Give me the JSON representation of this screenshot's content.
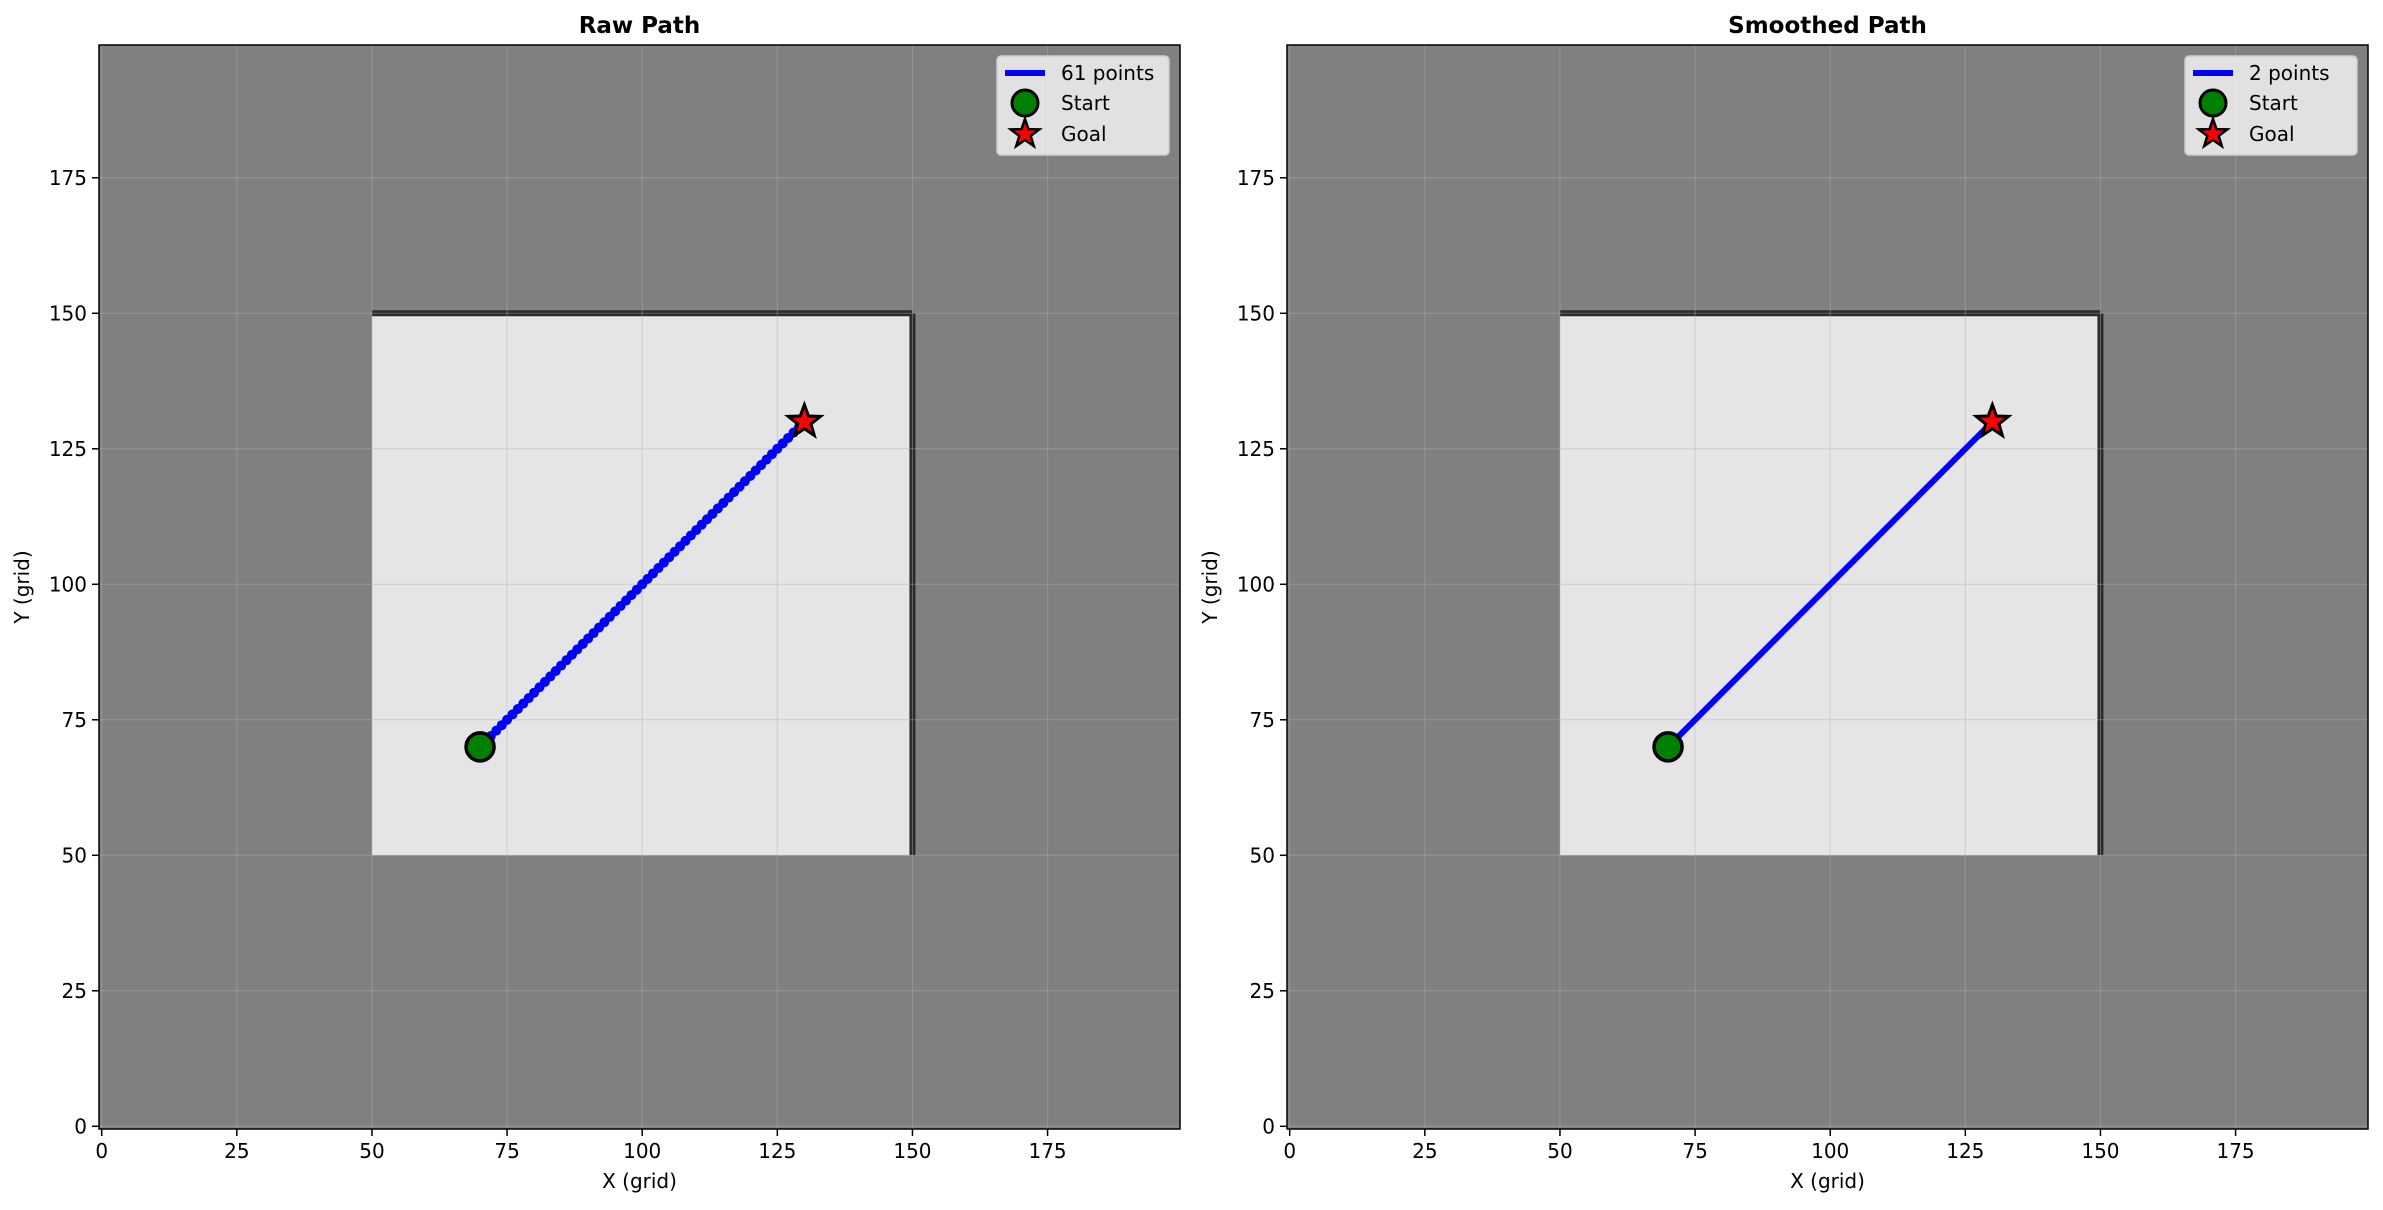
{
  "chart_data": [
    {
      "type": "line",
      "title": "Raw Path",
      "xlabel": "X (grid)",
      "ylabel": "Y (grid)",
      "xlim": [
        -0.5,
        199.5
      ],
      "ylim": [
        -0.5,
        199.5
      ],
      "xticks": [
        0,
        25,
        50,
        75,
        100,
        125,
        150,
        175
      ],
      "yticks": [
        0,
        25,
        50,
        75,
        100,
        125,
        150,
        175
      ],
      "grid": true,
      "legend_position": "top-right",
      "background": {
        "outside_color": "#808080",
        "free_region": {
          "x": [
            50,
            150
          ],
          "y": [
            50,
            150
          ],
          "color": "#e5e5e5"
        },
        "walls": [
          {
            "from": [
              50,
              150
            ],
            "to": [
              150,
              150
            ]
          },
          {
            "from": [
              150,
              150
            ],
            "to": [
              150,
              50
            ]
          }
        ]
      },
      "series": [
        {
          "name": "61 points",
          "color": "#0000ff",
          "marker": "o",
          "start": [
            70,
            70
          ],
          "end": [
            130,
            130
          ],
          "num_points": 61
        }
      ],
      "start": {
        "label": "Start",
        "x": 70,
        "y": 70,
        "color": "#008000"
      },
      "goal": {
        "label": "Goal",
        "x": 130,
        "y": 130,
        "color": "#ff0000"
      }
    },
    {
      "type": "line",
      "title": "Smoothed Path",
      "xlabel": "X (grid)",
      "ylabel": "Y (grid)",
      "xlim": [
        -0.5,
        199.5
      ],
      "ylim": [
        -0.5,
        199.5
      ],
      "xticks": [
        0,
        25,
        50,
        75,
        100,
        125,
        150,
        175
      ],
      "yticks": [
        0,
        25,
        50,
        75,
        100,
        125,
        150,
        175
      ],
      "grid": true,
      "legend_position": "top-right",
      "background": {
        "outside_color": "#808080",
        "free_region": {
          "x": [
            50,
            150
          ],
          "y": [
            50,
            150
          ],
          "color": "#e5e5e5"
        },
        "walls": [
          {
            "from": [
              50,
              150
            ],
            "to": [
              150,
              150
            ]
          },
          {
            "from": [
              150,
              150
            ],
            "to": [
              150,
              50
            ]
          }
        ]
      },
      "series": [
        {
          "name": "2 points",
          "color": "#0000ff",
          "marker": "none",
          "x": [
            70,
            130
          ],
          "y": [
            70,
            130
          ]
        }
      ],
      "start": {
        "label": "Start",
        "x": 70,
        "y": 70,
        "color": "#008000"
      },
      "goal": {
        "label": "Goal",
        "x": 130,
        "y": 130,
        "color": "#ff0000"
      }
    }
  ]
}
